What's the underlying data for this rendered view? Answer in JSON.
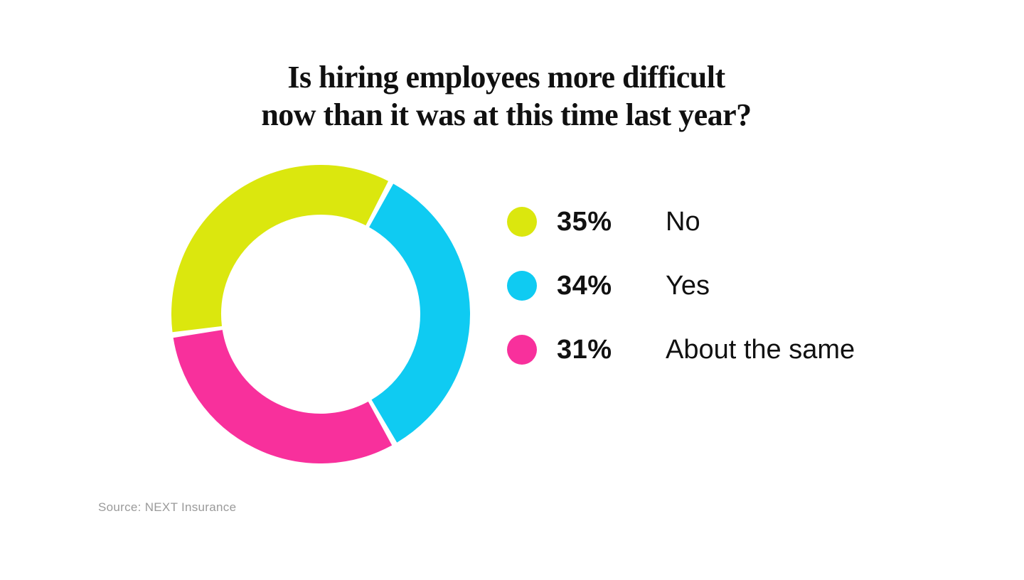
{
  "chart_data": {
    "type": "pie",
    "subtype": "donut",
    "title": "Is hiring employees more difficult now than it was at this time last year?",
    "title_lines": [
      "Is hiring employees more difficult",
      "now than it was at this time last year?"
    ],
    "segments": [
      {
        "label": "No",
        "value": 35,
        "percent_label": "35%",
        "color": "#dbe70e"
      },
      {
        "label": "Yes",
        "value": 34,
        "percent_label": "34%",
        "color": "#0fcbf2"
      },
      {
        "label": "About the same",
        "value": 31,
        "percent_label": "31%",
        "color": "#f8309c"
      }
    ],
    "legend_position": "right",
    "layout": {
      "start_angle_deg": 262,
      "segment_gap_deg": 2.2,
      "outer_radius": 210,
      "inner_radius": 140,
      "gap_color": "#ffffff"
    },
    "source": "Source: NEXT Insurance",
    "background_color": "#ffffff",
    "title_color": "#101010",
    "text_color": "#111111",
    "source_color": "#9a9a9a"
  }
}
